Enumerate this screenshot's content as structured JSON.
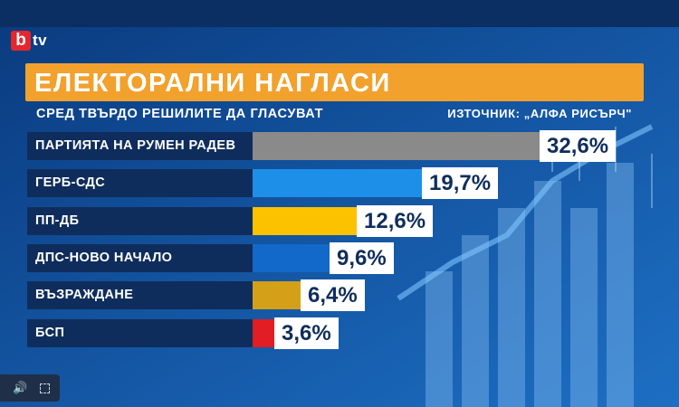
{
  "brand": {
    "logo_letter": "b",
    "logo_suffix": "tv",
    "accent": "#e5262c"
  },
  "title": "ЕЛЕКТОРАЛНИ НАГЛАСИ",
  "subtitle": "СРЕД ТВЪРДО РЕШИЛИТЕ ДА ГЛАСУВАТ",
  "source": "ИЗТОЧНИК: „АЛФА РИСЪРЧ\"",
  "chart_data": {
    "type": "bar",
    "categories": [
      "ПАРТИЯТА НА РУМЕН РАДЕВ",
      "ГЕРБ-СДС",
      "ПП-ДБ",
      "ДПС-НОВО НАЧАЛО",
      "ВЪЗРАЖДАНЕ",
      "БСП"
    ],
    "values": [
      32.6,
      19.7,
      12.6,
      9.6,
      6.4,
      3.6
    ],
    "value_labels": [
      "32,6%",
      "19,7%",
      "12,6%",
      "9,6%",
      "6,4%",
      "3,6%"
    ],
    "colors": [
      "#8a8a8a",
      "#1e8fe8",
      "#fcc200",
      "#1269c9",
      "#d4a017",
      "#e21d24"
    ],
    "title": "ЕЛЕКТОРАЛНИ НАГЛАСИ",
    "xlabel": "",
    "ylabel": "",
    "orientation": "horizontal"
  },
  "player": {
    "volume_icon": "speaker-icon",
    "fullscreen_icon": "fullscreen-icon"
  }
}
